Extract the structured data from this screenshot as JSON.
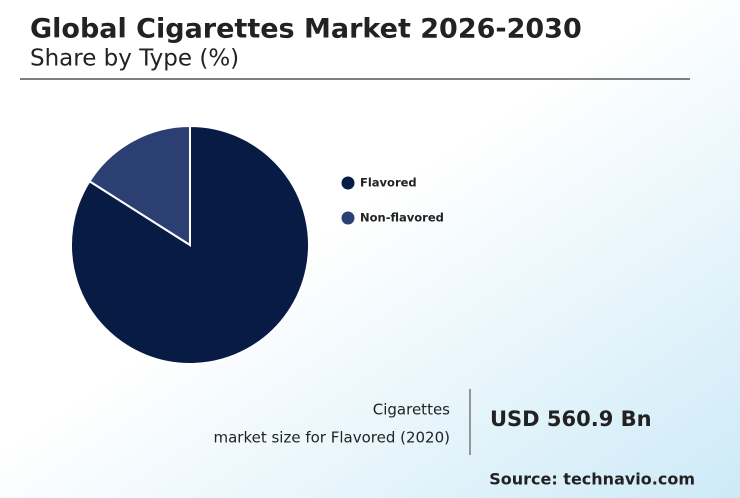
{
  "chart_data": {
    "type": "pie",
    "title": "Global Cigarettes Market 2026-2030",
    "subtitle": "Share by Type (%)",
    "categories": [
      "Flavored",
      "Non-flavored"
    ],
    "values": [
      84,
      16
    ],
    "colors": [
      "#081b45",
      "#2b3f72"
    ]
  },
  "highlight": {
    "line1": "Cigarettes",
    "line2": "market size for Flavored (2020)",
    "value": "USD 560.9 Bn"
  },
  "source": "Source: technavio.com"
}
